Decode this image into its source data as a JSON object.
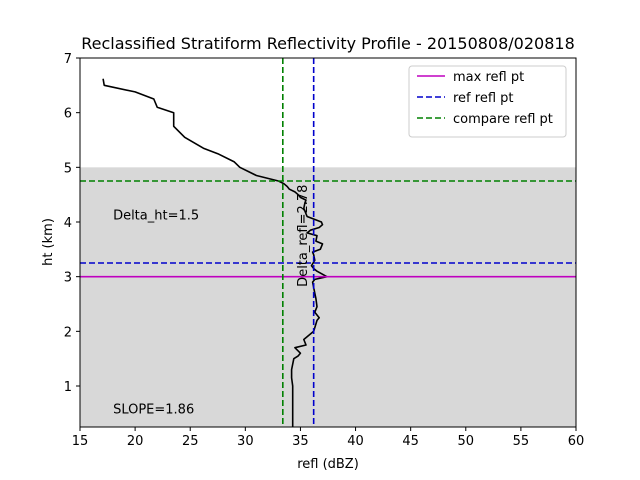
{
  "chart_data": {
    "type": "line",
    "title": "Reclassified Stratiform Reflectivity Profile - 20150808/020818",
    "xlabel": "refl (dBZ)",
    "ylabel": "ht (km)",
    "xlim": [
      15,
      60
    ],
    "ylim": [
      0.25,
      7
    ],
    "xticks": [
      "15",
      "20",
      "25",
      "30",
      "35",
      "40",
      "45",
      "50",
      "55",
      "60"
    ],
    "yticks": [
      "1",
      "2",
      "3",
      "4",
      "5",
      "6",
      "7"
    ],
    "shaded_band": {
      "y_from": 0.25,
      "y_to": 5.0,
      "color": "#d8d8d8"
    },
    "profile": {
      "color": "#000000",
      "x": [
        34.3,
        34.3,
        34.3,
        34.3,
        34.2,
        34.2,
        34.4,
        34.8,
        35.0,
        34.5,
        35.5,
        35.3,
        36.2,
        36.5,
        36.7,
        36.3,
        36.5,
        36.4,
        36.3,
        36.1,
        36.3,
        37.4,
        36.5,
        36.2,
        36.0,
        36.3,
        36.2,
        36.1,
        36.8,
        37.0,
        36.4,
        36.5,
        35.6,
        35.9,
        36.7,
        37.0,
        36.9,
        35.6,
        35.3,
        35.4,
        35.5,
        35.0,
        34.8,
        34.5,
        34.0,
        33.8,
        33.5,
        33.0,
        31.0,
        29.5,
        29.0,
        27.5,
        26.2,
        24.5,
        23.5,
        23.5,
        22.0,
        21.7,
        20.0,
        17.2,
        17.1
      ],
      "y": [
        0.25,
        0.5,
        0.75,
        1.0,
        1.15,
        1.3,
        1.5,
        1.55,
        1.6,
        1.7,
        1.75,
        1.85,
        2.0,
        2.2,
        2.25,
        2.35,
        2.45,
        2.6,
        2.7,
        2.9,
        2.95,
        3.0,
        3.1,
        3.15,
        3.2,
        3.3,
        3.4,
        3.45,
        3.5,
        3.6,
        3.65,
        3.75,
        3.8,
        3.85,
        3.9,
        3.95,
        4.0,
        4.1,
        4.25,
        4.35,
        4.4,
        4.45,
        4.5,
        4.55,
        4.6,
        4.65,
        4.7,
        4.75,
        4.85,
        5.0,
        5.1,
        5.25,
        5.35,
        5.55,
        5.75,
        6.0,
        6.1,
        6.25,
        6.38,
        6.5,
        6.62
      ]
    },
    "reference_lines": [
      {
        "name": "max refl pt",
        "orientation": "horizontal",
        "value": 3.0,
        "color": "#bf00bf",
        "dashed": false
      },
      {
        "name": "ref refl pt",
        "orientation": "horizontal",
        "value": 3.25,
        "color": "#0000cc",
        "dashed": true
      },
      {
        "name": "ref refl pt",
        "orientation": "vertical",
        "value": 36.2,
        "color": "#0000cc",
        "dashed": true
      },
      {
        "name": "compare refl pt",
        "orientation": "horizontal",
        "value": 4.75,
        "color": "#008000",
        "dashed": true
      },
      {
        "name": "compare refl pt",
        "orientation": "vertical",
        "value": 33.4,
        "color": "#008000",
        "dashed": true
      }
    ],
    "legend": {
      "placement": "top-right",
      "entries": [
        {
          "label": "max refl pt",
          "color": "#bf00bf",
          "dashed": false
        },
        {
          "label": "ref refl pt",
          "color": "#0000cc",
          "dashed": true
        },
        {
          "label": "compare refl pt",
          "color": "#008000",
          "dashed": true
        }
      ]
    },
    "annotations": [
      {
        "text": "Delta_ht=1.5",
        "x": 18.0,
        "y": 4.05,
        "rotation": 0
      },
      {
        "text": "Delta_refl=2.78",
        "x": 35.6,
        "y": 3.75,
        "rotation": -90
      },
      {
        "text": "SLOPE=1.86",
        "x": 18.0,
        "y": 0.5,
        "rotation": 0
      }
    ]
  }
}
